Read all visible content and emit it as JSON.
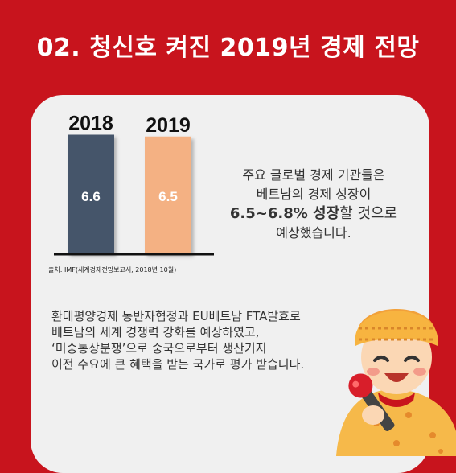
{
  "header": {
    "title": "02. 청신호 켜진 2019년 경제 전망"
  },
  "chart_data": {
    "type": "bar",
    "categories": [
      "2018",
      "2019"
    ],
    "values": [
      6.6,
      6.5
    ],
    "value_labels": [
      "6.6",
      "6.5"
    ],
    "colors": [
      "#44546a",
      "#f4b183"
    ],
    "title": "",
    "xlabel": "",
    "ylabel": "",
    "grid": false,
    "ylim": [
      0,
      6.8
    ]
  },
  "source": "출처: IMF(세계경제전망보고서, 2018년 10월)",
  "summary": {
    "line1": "주요 글로벌 경제 기관들은",
    "line2": "베트남의 경제 성장이",
    "line3_bold": "6.5~6.8% 성장",
    "line3_rest": "할 것으로",
    "line4": "예상했습니다."
  },
  "body": {
    "lines": [
      "환태평양경제 동반자협정과 EU베트남 FTA발효로",
      "베트남의 세계 경쟁력 강화를 예상하였고,",
      "‘미중통상분쟁’으로 중국으로부터  생산기지",
      "이전 수요에 큰 혜택을 받는 국가로 평가 받습니다."
    ]
  },
  "mascot": {
    "icon": "cartoon-singer-with-microphone-icon"
  }
}
